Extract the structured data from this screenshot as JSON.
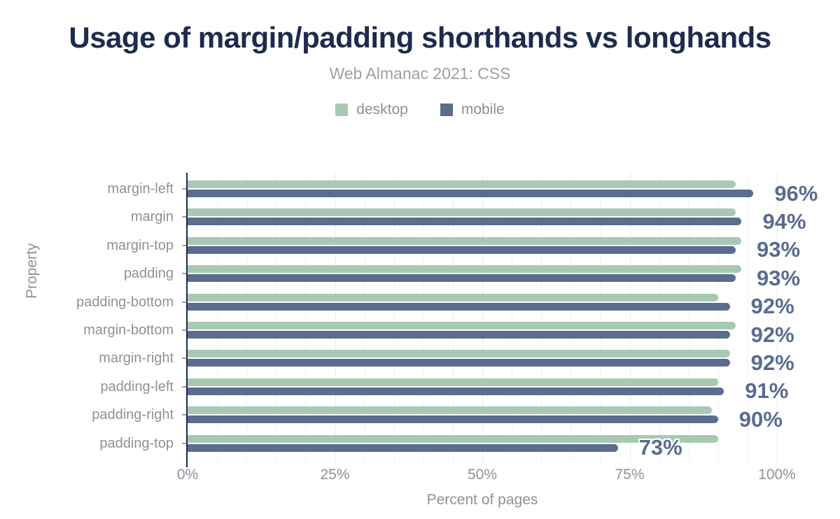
{
  "header": {
    "title": "Usage of margin/padding shorthands vs longhands",
    "subtitle": "Web Almanac 2021: CSS"
  },
  "legend": [
    {
      "label": "desktop",
      "color": "#a7c9b4"
    },
    {
      "label": "mobile",
      "color": "#5b6c8d"
    }
  ],
  "chart_data": {
    "type": "bar",
    "orientation": "horizontal",
    "title": "Usage of margin/padding shorthands vs longhands",
    "subtitle": "Web Almanac 2021: CSS",
    "categories": [
      "margin-left",
      "margin",
      "margin-top",
      "padding",
      "padding-bottom",
      "margin-bottom",
      "margin-right",
      "padding-left",
      "padding-right",
      "padding-top"
    ],
    "series": [
      {
        "name": "desktop",
        "color": "#a7c9b4",
        "values": [
          93,
          93,
          94,
          94,
          90,
          93,
          92,
          90,
          89,
          90
        ]
      },
      {
        "name": "mobile",
        "color": "#5b6c8d",
        "values": [
          96,
          94,
          93,
          93,
          92,
          92,
          92,
          91,
          90,
          73
        ]
      }
    ],
    "bar_labels": [
      "96%",
      "94%",
      "93%",
      "93%",
      "92%",
      "92%",
      "92%",
      "91%",
      "90%",
      "73%"
    ],
    "xlabel": "Percent of pages",
    "ylabel": "Property",
    "xlim": [
      0,
      100
    ],
    "x_ticks": [
      {
        "value": 0,
        "label": "0%"
      },
      {
        "value": 25,
        "label": "25%"
      },
      {
        "value": 50,
        "label": "50%"
      },
      {
        "value": 75,
        "label": "75%"
      },
      {
        "value": 100,
        "label": "100%"
      }
    ],
    "grid_step": 5,
    "grid_on": true,
    "legend_position": "top",
    "colors": {
      "title": "#1d2b4c",
      "subtitle": "#9aa0a6",
      "axis_line": "#1d2b4c",
      "tick_text": "#8b9299",
      "value_label": "#596c8f",
      "grid_minor": "#f1f1f1",
      "grid_major": "#e8e8e8",
      "background": "#ffffff"
    }
  }
}
